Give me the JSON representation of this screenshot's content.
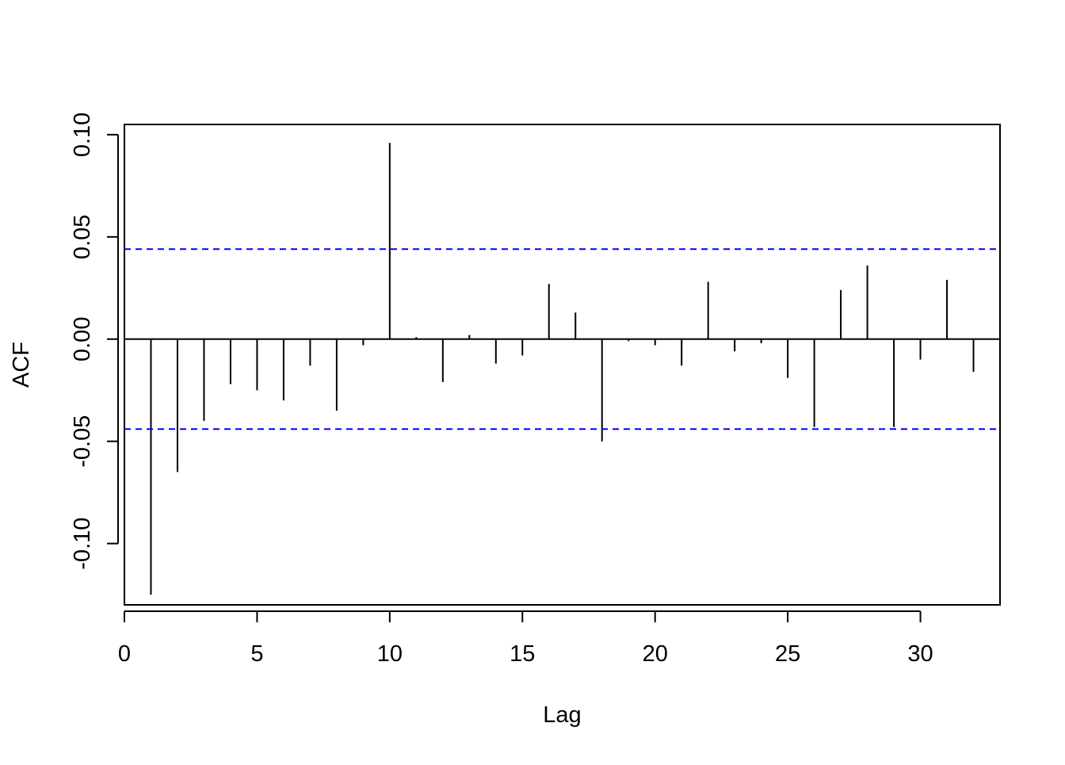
{
  "chart_data": {
    "type": "bar",
    "title": "",
    "xlabel": "Lag",
    "ylabel": "ACF",
    "xlim": [
      0,
      33
    ],
    "ylim": [
      -0.13,
      0.105
    ],
    "x_ticks": [
      0,
      5,
      10,
      15,
      20,
      25,
      30
    ],
    "x_tick_labels": [
      "0",
      "5",
      "10",
      "15",
      "20",
      "25",
      "30"
    ],
    "y_ticks": [
      -0.1,
      -0.05,
      0.0,
      0.05,
      0.1
    ],
    "y_tick_labels": [
      "-0.10",
      "-0.05",
      "0.00",
      "0.05",
      "0.10"
    ],
    "lags": [
      1,
      2,
      3,
      4,
      5,
      6,
      7,
      8,
      9,
      10,
      11,
      12,
      13,
      14,
      15,
      16,
      17,
      18,
      19,
      20,
      21,
      22,
      23,
      24,
      25,
      26,
      27,
      28,
      29,
      30,
      31,
      32
    ],
    "values": [
      -0.125,
      -0.065,
      -0.04,
      -0.022,
      -0.025,
      -0.03,
      -0.013,
      -0.035,
      -0.003,
      0.096,
      0.001,
      -0.021,
      0.002,
      -0.012,
      -0.008,
      0.027,
      0.013,
      -0.05,
      -0.001,
      -0.003,
      -0.013,
      0.028,
      -0.006,
      -0.002,
      -0.019,
      -0.043,
      0.024,
      0.036,
      -0.043,
      -0.01,
      0.029,
      -0.016
    ],
    "confidence_bound": 0.044,
    "grid": false,
    "colors": {
      "bars": "#000000",
      "confidence_lines": "#0000FF",
      "zero_line": "#000000"
    }
  }
}
